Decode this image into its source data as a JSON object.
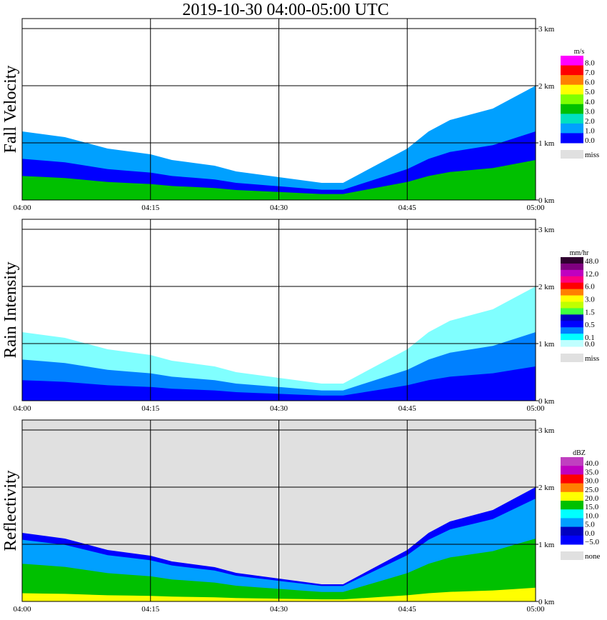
{
  "title": "2019-10-30   04:00-05:00 UTC",
  "chart_data": [
    {
      "type": "heatmap",
      "ylabel": "Fall Velocity",
      "x_ticks": [
        "04:00",
        "04:15",
        "04:30",
        "04:45",
        "05:00"
      ],
      "y_ticks": [
        "0 km",
        "1 km",
        "2 km",
        "3 km"
      ],
      "legend": {
        "unit": "m/s",
        "labels": [
          "8.0",
          "7.0",
          "6.0",
          "5.0",
          "4.0",
          "3.0",
          "2.0",
          "1.0",
          "0.0"
        ],
        "colors": [
          "#ff00ff",
          "#ff0000",
          "#ff8000",
          "#ffff00",
          "#80ff00",
          "#00c000",
          "#00e0c0",
          "#00a0ff",
          "#0000ff"
        ],
        "missing_label": "miss",
        "missing_color": "#e0e0e0"
      },
      "background": "#ffffff",
      "echo_top_km": [
        1.2,
        1.15,
        1.1,
        1.0,
        0.9,
        0.85,
        0.8,
        0.7,
        0.65,
        0.6,
        0.5,
        0.45,
        0.4,
        0.35,
        0.3,
        0.3,
        0.5,
        0.7,
        0.9,
        1.2,
        1.4,
        1.5,
        1.6,
        1.8,
        2.0
      ],
      "layers": [
        {
          "color": "#00a0ff",
          "scale": 1.0
        },
        {
          "color": "#0000ff",
          "scale": 0.6
        },
        {
          "color": "#00c000",
          "scale": 0.35
        }
      ]
    },
    {
      "type": "heatmap",
      "ylabel": "Rain Intensity",
      "x_ticks": [
        "04:00",
        "04:15",
        "04:30",
        "04:45",
        "05:00"
      ],
      "y_ticks": [
        "0 km",
        "1 km",
        "2 km",
        "3 km"
      ],
      "legend": {
        "unit": "mm/hr",
        "labels": [
          "48.0",
          "",
          "12.0",
          "",
          "6.0",
          "",
          "3.0",
          "",
          "1.5",
          "",
          "0.5",
          "",
          "0.1",
          "0.0"
        ],
        "colors": [
          "#300030",
          "#800080",
          "#c000c0",
          "#ff0080",
          "#ff0000",
          "#ff8000",
          "#ffff00",
          "#c0ff00",
          "#40ff40",
          "#0000c0",
          "#0000ff",
          "#0080ff",
          "#00ffff",
          "#c0ffff"
        ],
        "missing_label": "miss",
        "missing_color": "#e0e0e0"
      },
      "background": "#ffffff",
      "echo_top_km": [
        1.2,
        1.15,
        1.1,
        1.0,
        0.9,
        0.85,
        0.8,
        0.7,
        0.65,
        0.6,
        0.5,
        0.45,
        0.4,
        0.35,
        0.3,
        0.3,
        0.5,
        0.7,
        0.9,
        1.2,
        1.4,
        1.5,
        1.6,
        1.8,
        2.0
      ],
      "layers": [
        {
          "color": "#80ffff",
          "scale": 1.0
        },
        {
          "color": "#0080ff",
          "scale": 0.6
        },
        {
          "color": "#0000ff",
          "scale": 0.3
        }
      ]
    },
    {
      "type": "heatmap",
      "ylabel": "Reflectivity",
      "x_ticks": [
        "04:00",
        "04:15",
        "04:30",
        "04:45",
        "05:00"
      ],
      "y_ticks": [
        "0 km",
        "1 km",
        "2 km",
        "3 km"
      ],
      "legend": {
        "unit": "dBZ",
        "labels": [
          "40.0",
          "35.0",
          "30.0",
          "25.0",
          "20.0",
          "15.0",
          "10.0",
          "5.0",
          "0.0",
          "−5.0"
        ],
        "colors": [
          "#c040c0",
          "#c000c0",
          "#ff0000",
          "#ff8000",
          "#ffff00",
          "#00c000",
          "#00ffff",
          "#00a0ff",
          "#0000c0",
          "#0000ff"
        ],
        "missing_label": "none",
        "missing_color": "#e0e0e0"
      },
      "background": "#e0e0e0",
      "echo_top_km": [
        1.2,
        1.15,
        1.1,
        1.0,
        0.9,
        0.85,
        0.8,
        0.7,
        0.65,
        0.6,
        0.5,
        0.45,
        0.4,
        0.35,
        0.3,
        0.3,
        0.5,
        0.7,
        0.9,
        1.2,
        1.4,
        1.5,
        1.6,
        1.8,
        2.0
      ],
      "layers": [
        {
          "color": "#0000ff",
          "scale": 1.0
        },
        {
          "color": "#00a0ff",
          "scale": 0.9
        },
        {
          "color": "#00c000",
          "scale": 0.55
        },
        {
          "color": "#ffff00",
          "scale": 0.12
        }
      ]
    }
  ]
}
